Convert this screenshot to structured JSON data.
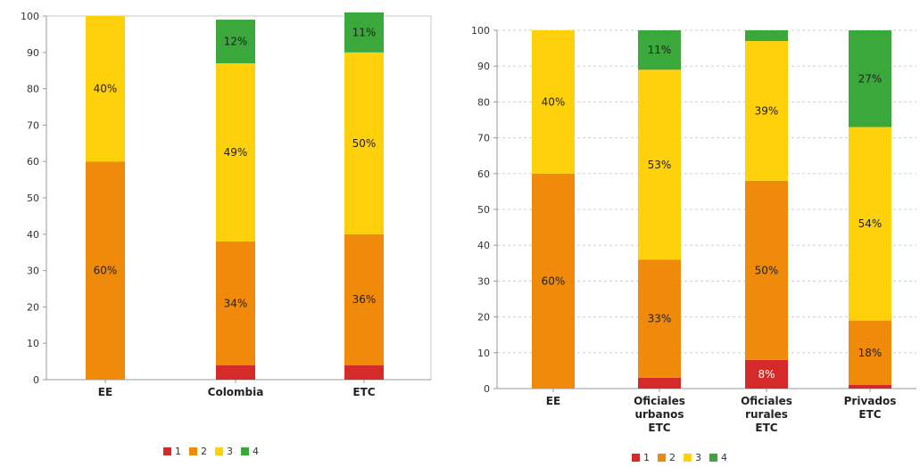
{
  "colors": {
    "1": "#d42a2a",
    "2": "#f08a0b",
    "3": "#fed10a",
    "4": "#3aa83a"
  },
  "chart_data": [
    {
      "type": "bar",
      "stacked": true,
      "categories": [
        "EE",
        "Colombia",
        "ETC"
      ],
      "ylim": [
        0,
        100
      ],
      "yticks": [
        0,
        10,
        20,
        30,
        40,
        50,
        60,
        70,
        80,
        90,
        100
      ],
      "series": [
        {
          "name": "1",
          "values": [
            0,
            4,
            4
          ],
          "labels": [
            "",
            "",
            ""
          ]
        },
        {
          "name": "2",
          "values": [
            60,
            34,
            36
          ],
          "labels": [
            "60%",
            "34%",
            "36%"
          ]
        },
        {
          "name": "3",
          "values": [
            40,
            49,
            50
          ],
          "labels": [
            "40%",
            "49%",
            "50%"
          ]
        },
        {
          "name": "4",
          "values": [
            0,
            12,
            11
          ],
          "labels": [
            "",
            "12%",
            "11%"
          ]
        }
      ],
      "grid": false,
      "legend": "bottom"
    },
    {
      "type": "bar",
      "stacked": true,
      "categories": [
        "EE",
        "Oficiales urbanos ETC",
        "Oficiales rurales ETC",
        "Privados ETC"
      ],
      "ylim": [
        0,
        100
      ],
      "yticks": [
        0,
        10,
        20,
        30,
        40,
        50,
        60,
        70,
        80,
        90,
        100
      ],
      "series": [
        {
          "name": "1",
          "values": [
            0,
            3,
            8,
            1
          ],
          "labels": [
            "",
            "",
            "8%",
            ""
          ]
        },
        {
          "name": "2",
          "values": [
            60,
            33,
            50,
            18
          ],
          "labels": [
            "60%",
            "33%",
            "50%",
            "18%"
          ]
        },
        {
          "name": "3",
          "values": [
            40,
            53,
            39,
            54
          ],
          "labels": [
            "40%",
            "53%",
            "39%",
            "54%"
          ]
        },
        {
          "name": "4",
          "values": [
            0,
            11,
            3,
            27
          ],
          "labels": [
            "",
            "11%",
            "",
            "27%"
          ]
        }
      ],
      "grid": true,
      "legend": "bottom"
    }
  ]
}
